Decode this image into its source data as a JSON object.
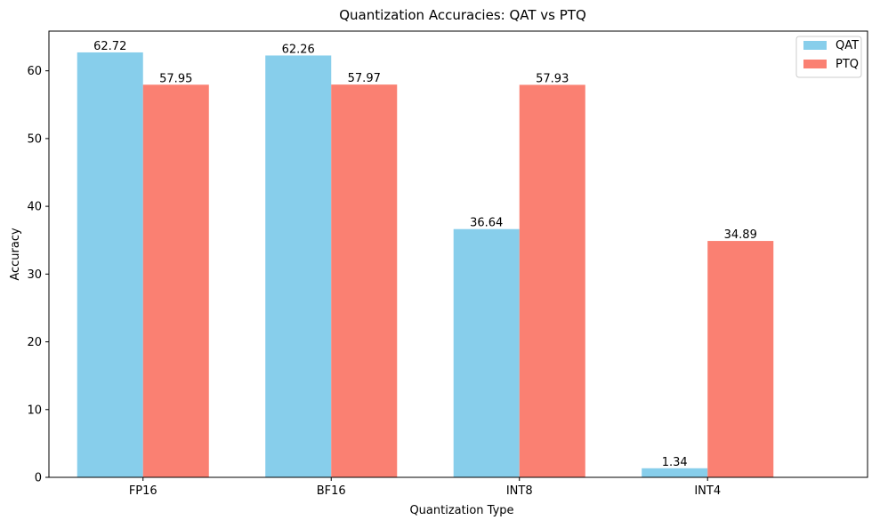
{
  "chart_data": {
    "type": "bar",
    "title": "Quantization Accuracies: QAT vs PTQ",
    "xlabel": "Quantization Type",
    "ylabel": "Accuracy",
    "categories": [
      "FP16",
      "BF16",
      "INT8",
      "INT4"
    ],
    "series": [
      {
        "name": "QAT",
        "color": "#87ceeb",
        "values": [
          62.72,
          62.26,
          36.64,
          1.34
        ],
        "labels": [
          "62.72",
          "62.26",
          "36.64",
          "1.34"
        ]
      },
      {
        "name": "PTQ",
        "color": "#fa8072",
        "values": [
          57.95,
          57.97,
          57.93,
          34.89
        ],
        "labels": [
          "57.95",
          "57.97",
          "57.93",
          "34.89"
        ]
      }
    ],
    "ylim": [
      0,
      65.86
    ],
    "yticks": [
      0,
      10,
      20,
      30,
      40,
      50,
      60
    ],
    "ytick_labels": [
      "0",
      "10",
      "20",
      "30",
      "40",
      "50",
      "60"
    ],
    "grid": false,
    "legend_position": "top-right"
  }
}
